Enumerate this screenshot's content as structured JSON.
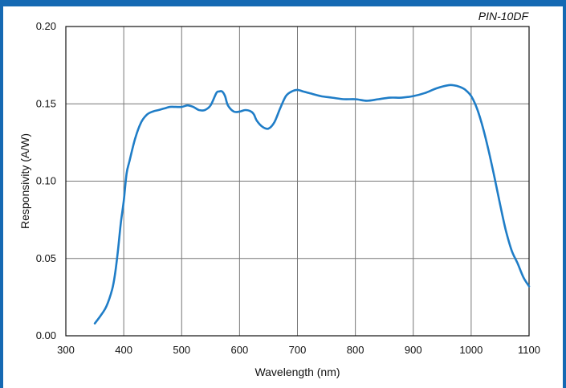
{
  "chart_data": {
    "type": "line",
    "annotation": "PIN-10DF",
    "xlabel": "Wavelength (nm)",
    "ylabel": "Responsivity (A/W)",
    "xlim": [
      300,
      1100
    ],
    "ylim": [
      0,
      0.2
    ],
    "x_ticks": [
      "300",
      "400",
      "500",
      "600",
      "700",
      "800",
      "900",
      "1000",
      "1100"
    ],
    "y_ticks": [
      "0.00",
      "0.05",
      "0.10",
      "0.15",
      "0.20"
    ],
    "grid": true,
    "line_color": "#1f7dc7",
    "border_color": "#1569b3",
    "series": [
      {
        "x": [
          350,
          360,
          370,
          380,
          385,
          390,
          395,
          400,
          405,
          410,
          420,
          430,
          440,
          450,
          460,
          470,
          480,
          490,
          500,
          510,
          520,
          530,
          540,
          550,
          560,
          565,
          570,
          575,
          580,
          590,
          600,
          610,
          620,
          625,
          630,
          640,
          650,
          660,
          670,
          680,
          690,
          700,
          710,
          720,
          740,
          760,
          780,
          800,
          820,
          840,
          860,
          880,
          900,
          920,
          940,
          960,
          970,
          980,
          990,
          1000,
          1010,
          1020,
          1030,
          1040,
          1050,
          1060,
          1070,
          1080,
          1090,
          1100
        ],
        "y": [
          0.008,
          0.013,
          0.019,
          0.03,
          0.04,
          0.055,
          0.073,
          0.087,
          0.105,
          0.113,
          0.128,
          0.138,
          0.143,
          0.145,
          0.146,
          0.147,
          0.148,
          0.148,
          0.148,
          0.149,
          0.148,
          0.146,
          0.146,
          0.149,
          0.157,
          0.158,
          0.158,
          0.155,
          0.149,
          0.145,
          0.145,
          0.146,
          0.145,
          0.143,
          0.139,
          0.135,
          0.134,
          0.138,
          0.147,
          0.155,
          0.158,
          0.159,
          0.158,
          0.157,
          0.155,
          0.154,
          0.153,
          0.153,
          0.152,
          0.153,
          0.154,
          0.154,
          0.155,
          0.157,
          0.16,
          0.162,
          0.162,
          0.161,
          0.159,
          0.155,
          0.147,
          0.135,
          0.12,
          0.103,
          0.085,
          0.068,
          0.055,
          0.047,
          0.038,
          0.032
        ]
      }
    ]
  }
}
